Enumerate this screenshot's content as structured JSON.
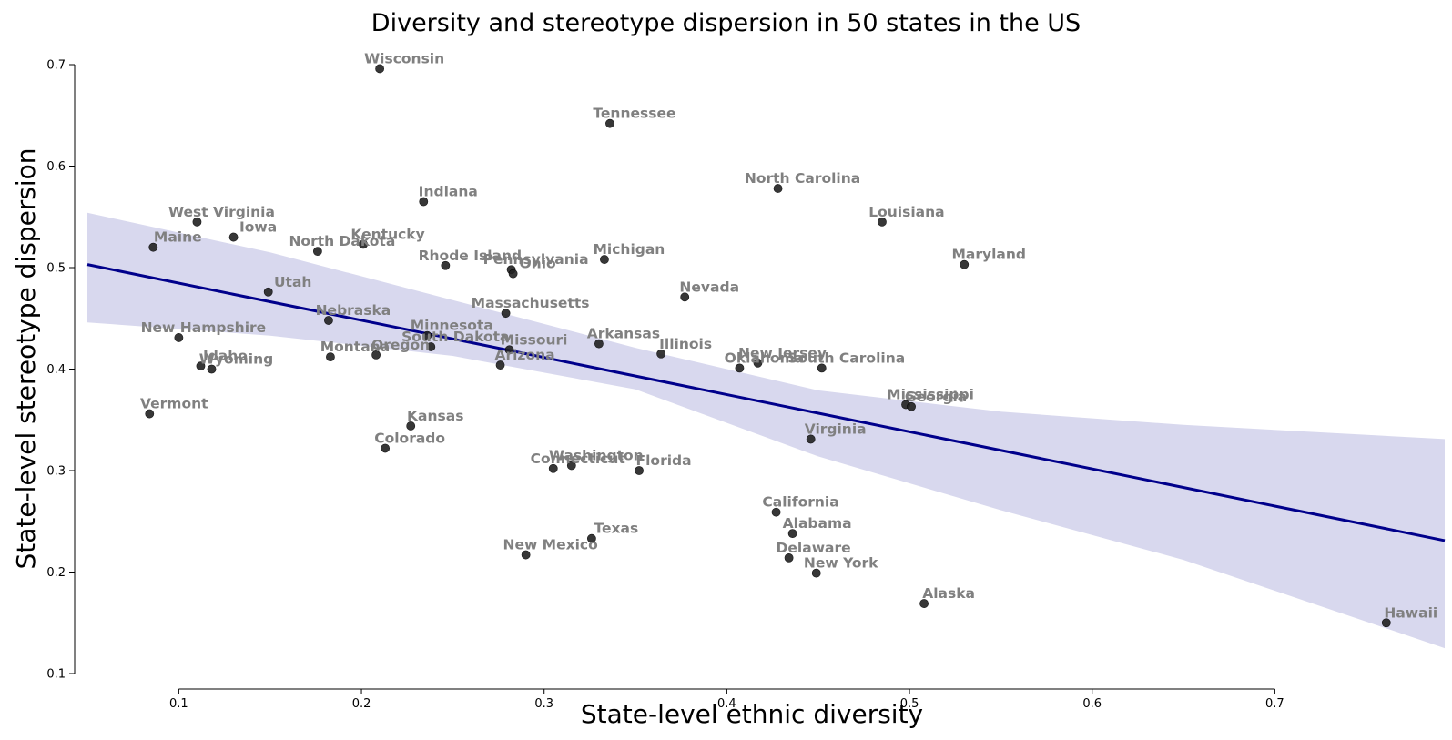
{
  "chart_data": {
    "type": "scatter",
    "title": "Diversity and stereotype dispersion in 50 states in the US",
    "xlabel": "State-level ethnic diversity",
    "ylabel": "State-level stereotype dispersion",
    "xlim": [
      0.043,
      0.793
    ],
    "ylim": [
      0.1,
      0.7
    ],
    "xticks": [
      "0.1",
      "0.2",
      "0.3",
      "0.4",
      "0.5",
      "0.6",
      "0.7"
    ],
    "yticks": [
      "0.1",
      "0.2",
      "0.3",
      "0.4",
      "0.5",
      "0.6",
      "0.7"
    ],
    "point_color": "#222222",
    "label_color": "#808080",
    "regression": {
      "color": "#00008B",
      "ci_color": "#D8D8EE",
      "line": [
        [
          0.05,
          0.503
        ],
        [
          0.793,
          0.231
        ]
      ],
      "ci_upper": [
        [
          0.05,
          0.554
        ],
        [
          0.15,
          0.515
        ],
        [
          0.25,
          0.468
        ],
        [
          0.35,
          0.421
        ],
        [
          0.45,
          0.379
        ],
        [
          0.55,
          0.358
        ],
        [
          0.65,
          0.345
        ],
        [
          0.793,
          0.331
        ]
      ],
      "ci_lower": [
        [
          0.05,
          0.446
        ],
        [
          0.15,
          0.433
        ],
        [
          0.25,
          0.413
        ],
        [
          0.35,
          0.38
        ],
        [
          0.45,
          0.314
        ],
        [
          0.55,
          0.261
        ],
        [
          0.65,
          0.212
        ],
        [
          0.793,
          0.125
        ]
      ]
    },
    "points": [
      {
        "state": "Wisconsin",
        "x": 0.21,
        "y": 0.696
      },
      {
        "state": "Tennessee",
        "x": 0.336,
        "y": 0.642
      },
      {
        "state": "North Carolina",
        "x": 0.428,
        "y": 0.578
      },
      {
        "state": "Indiana",
        "x": 0.234,
        "y": 0.565
      },
      {
        "state": "West Virginia",
        "x": 0.11,
        "y": 0.545
      },
      {
        "state": "Louisiana",
        "x": 0.485,
        "y": 0.545
      },
      {
        "state": "Iowa",
        "x": 0.13,
        "y": 0.53
      },
      {
        "state": "Kentucky",
        "x": 0.201,
        "y": 0.523
      },
      {
        "state": "Maine",
        "x": 0.086,
        "y": 0.52
      },
      {
        "state": "North Dakota",
        "x": 0.176,
        "y": 0.516
      },
      {
        "state": "Michigan",
        "x": 0.333,
        "y": 0.508
      },
      {
        "state": "Maryland",
        "x": 0.53,
        "y": 0.503
      },
      {
        "state": "Rhode Island",
        "x": 0.246,
        "y": 0.502
      },
      {
        "state": "Pennsylvania",
        "x": 0.282,
        "y": 0.498
      },
      {
        "state": "Ohio",
        "x": 0.283,
        "y": 0.494
      },
      {
        "state": "Utah",
        "x": 0.149,
        "y": 0.476
      },
      {
        "state": "Nevada",
        "x": 0.377,
        "y": 0.471
      },
      {
        "state": "Massachusetts",
        "x": 0.279,
        "y": 0.455
      },
      {
        "state": "Nebraska",
        "x": 0.182,
        "y": 0.448
      },
      {
        "state": "Minnesota",
        "x": 0.236,
        "y": 0.433
      },
      {
        "state": "New Hampshire",
        "x": 0.1,
        "y": 0.431
      },
      {
        "state": "Arkansas",
        "x": 0.33,
        "y": 0.425
      },
      {
        "state": "South Dakota",
        "x": 0.238,
        "y": 0.422
      },
      {
        "state": "Missouri",
        "x": 0.281,
        "y": 0.419
      },
      {
        "state": "Illinois",
        "x": 0.364,
        "y": 0.415
      },
      {
        "state": "Oregon",
        "x": 0.208,
        "y": 0.414
      },
      {
        "state": "Montana",
        "x": 0.183,
        "y": 0.412
      },
      {
        "state": "New Jersey",
        "x": 0.417,
        "y": 0.406
      },
      {
        "state": "Arizona",
        "x": 0.276,
        "y": 0.404
      },
      {
        "state": "Idaho",
        "x": 0.112,
        "y": 0.403
      },
      {
        "state": "Oklahoma",
        "x": 0.407,
        "y": 0.401
      },
      {
        "state": "South Carolina",
        "x": 0.452,
        "y": 0.401
      },
      {
        "state": "Wyoming",
        "x": 0.118,
        "y": 0.4
      },
      {
        "state": "Mississippi",
        "x": 0.498,
        "y": 0.365
      },
      {
        "state": "Georgia",
        "x": 0.501,
        "y": 0.363
      },
      {
        "state": "Vermont",
        "x": 0.084,
        "y": 0.356
      },
      {
        "state": "Kansas",
        "x": 0.227,
        "y": 0.344
      },
      {
        "state": "Virginia",
        "x": 0.446,
        "y": 0.331
      },
      {
        "state": "Colorado",
        "x": 0.213,
        "y": 0.322
      },
      {
        "state": "Washington",
        "x": 0.315,
        "y": 0.305
      },
      {
        "state": "Connecticut",
        "x": 0.305,
        "y": 0.302
      },
      {
        "state": "Florida",
        "x": 0.352,
        "y": 0.3
      },
      {
        "state": "California",
        "x": 0.427,
        "y": 0.259
      },
      {
        "state": "Alabama",
        "x": 0.436,
        "y": 0.238
      },
      {
        "state": "Texas",
        "x": 0.326,
        "y": 0.233
      },
      {
        "state": "New Mexico",
        "x": 0.29,
        "y": 0.217
      },
      {
        "state": "Delaware",
        "x": 0.434,
        "y": 0.214
      },
      {
        "state": "New York",
        "x": 0.449,
        "y": 0.199
      },
      {
        "state": "Alaska",
        "x": 0.508,
        "y": 0.169
      },
      {
        "state": "Hawaii",
        "x": 0.761,
        "y": 0.15
      }
    ]
  }
}
